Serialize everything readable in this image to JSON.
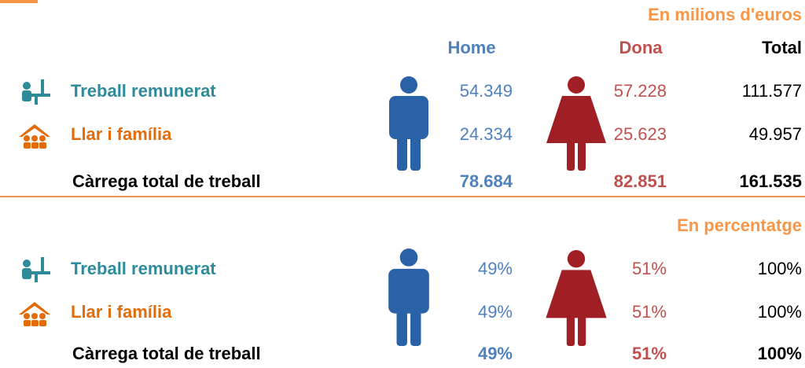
{
  "headers": [
    "Home",
    "Dona",
    "Total"
  ],
  "sections": [
    {
      "unit": "En milions d'euros",
      "rows": [
        {
          "label": "Treball remunerat",
          "values": [
            "54.349",
            "57.228",
            "111.577"
          ]
        },
        {
          "label": "Llar i família",
          "values": [
            "24.334",
            "25.623",
            "49.957"
          ]
        },
        {
          "label": "Càrrega total de treball",
          "values": [
            "78.684",
            "82.851",
            "161.535"
          ]
        }
      ]
    },
    {
      "unit": "En percentatge",
      "rows": [
        {
          "label": "Treball remunerat",
          "values": [
            "49%",
            "51%",
            "100%"
          ]
        },
        {
          "label": "Llar i família",
          "values": [
            "49%",
            "51%",
            "100%"
          ]
        },
        {
          "label": "Càrrega total de treball",
          "values": [
            "49%",
            "51%",
            "100%"
          ]
        }
      ]
    }
  ]
}
